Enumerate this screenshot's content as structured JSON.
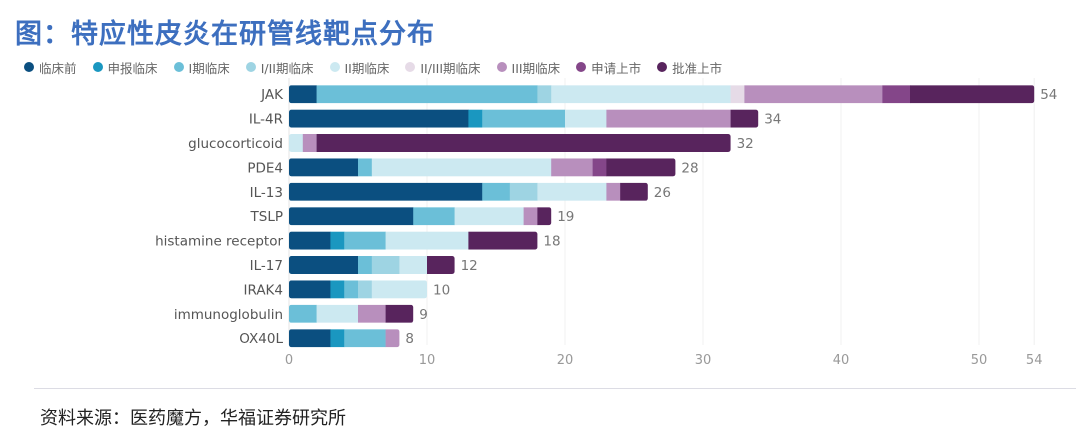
{
  "title": "图：特应性皮炎在研管线靶点分布",
  "source": "资料来源：医药魔方，华福证券研究所",
  "chart_data": {
    "type": "bar",
    "orientation": "horizontal",
    "stacked": true,
    "title": "图：特应性皮炎在研管线靶点分布",
    "xlabel": "",
    "ylabel": "",
    "xlim": [
      0,
      54
    ],
    "x_ticks": [
      0,
      10,
      20,
      30,
      40,
      50,
      54
    ],
    "grid": true,
    "legend_position": "top-left",
    "categories": [
      "JAK",
      "IL-4R",
      "glucocorticoid",
      "PDE4",
      "IL-13",
      "TSLP",
      "histamine receptor",
      "IL-17",
      "IRAK4",
      "immunoglobulin",
      "OX40L"
    ],
    "totals": [
      54,
      34,
      32,
      28,
      26,
      19,
      18,
      12,
      10,
      9,
      8
    ],
    "series": [
      {
        "name": "临床前",
        "color": "#0b4f80",
        "values": [
          2,
          13,
          0,
          5,
          14,
          9,
          3,
          5,
          3,
          0,
          3
        ]
      },
      {
        "name": "申报临床",
        "color": "#1a97c0",
        "values": [
          0,
          1,
          0,
          0,
          0,
          0,
          1,
          0,
          1,
          0,
          1
        ]
      },
      {
        "name": "I期临床",
        "color": "#6bbfd8",
        "values": [
          16,
          6,
          0,
          1,
          2,
          3,
          3,
          1,
          1,
          2,
          3
        ]
      },
      {
        "name": "I/II期临床",
        "color": "#9ed4e3",
        "values": [
          1,
          0,
          0,
          0,
          2,
          0,
          0,
          2,
          1,
          0,
          0
        ]
      },
      {
        "name": "II期临床",
        "color": "#cce9f1",
        "values": [
          13,
          3,
          1,
          13,
          5,
          5,
          6,
          2,
          4,
          3,
          0
        ]
      },
      {
        "name": "II/III期临床",
        "color": "#e6dbe7",
        "values": [
          1,
          0,
          0,
          0,
          0,
          0,
          0,
          0,
          0,
          0,
          0
        ]
      },
      {
        "name": "III期临床",
        "color": "#b88fbd",
        "values": [
          10,
          9,
          1,
          3,
          1,
          1,
          0,
          0,
          0,
          2,
          1
        ]
      },
      {
        "name": "申请上市",
        "color": "#844689",
        "values": [
          2,
          0,
          0,
          1,
          0,
          0,
          0,
          0,
          0,
          0,
          0
        ]
      },
      {
        "name": "批准上市",
        "color": "#58245d",
        "values": [
          9,
          2,
          30,
          5,
          2,
          1,
          5,
          2,
          0,
          2,
          0
        ]
      }
    ]
  }
}
